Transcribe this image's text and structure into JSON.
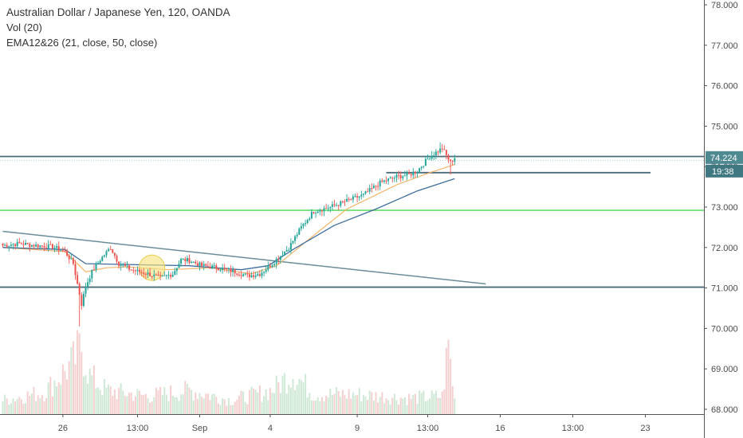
{
  "legend": {
    "title": "Australian Dollar / Japanese Yen, 120, OANDA",
    "volume": "Vol (20)",
    "ema": "EMA12&26 (21, close, 50, close)"
  },
  "price_badges": {
    "last_price": "74.224",
    "countdown": "19:38"
  },
  "colors": {
    "up": "#26a69a",
    "down": "#ef5350",
    "vol_up": "#cfe8d6",
    "vol_down": "#f5d0d0",
    "ema_fast": "#f5b56b",
    "ema_slow": "#3f6e9e",
    "h_line": "#4a6c7a",
    "green_line": "#66dd66",
    "trend_line": "#6b8c9a",
    "highlight": "#f5e27a",
    "price_badge": "#4f8a93",
    "countdown_badge": "#3f7880"
  },
  "chart_data": {
    "type": "candlestick",
    "title": "Australian Dollar / Japanese Yen, 120, OANDA",
    "y_axis_ticks": [
      "78.000",
      "77.000",
      "76.000",
      "75.000",
      "74.000",
      "73.000",
      "72.000",
      "71.000",
      "70.000",
      "69.000",
      "68.000"
    ],
    "x_axis_ticks": [
      "26",
      "13:00",
      "Sep",
      "4",
      "9",
      "13:00",
      "16",
      "13:00",
      "23"
    ],
    "ylim": [
      67.85,
      78.1
    ],
    "price_path": [
      [
        0,
        72.05
      ],
      [
        8,
        72.1
      ],
      [
        16,
        72.05
      ],
      [
        24,
        72.02
      ],
      [
        30,
        71.9
      ],
      [
        34,
        71.6
      ],
      [
        36,
        71.1
      ],
      [
        38,
        70.6
      ],
      [
        40,
        71.05
      ],
      [
        43,
        71.4
      ],
      [
        47,
        71.7
      ],
      [
        52,
        72.0
      ],
      [
        56,
        71.6
      ],
      [
        62,
        71.45
      ],
      [
        70,
        71.35
      ],
      [
        76,
        71.25
      ],
      [
        82,
        71.35
      ],
      [
        86,
        71.7
      ],
      [
        90,
        71.68
      ],
      [
        96,
        71.55
      ],
      [
        104,
        71.5
      ],
      [
        112,
        71.4
      ],
      [
        118,
        71.3
      ],
      [
        124,
        71.35
      ],
      [
        130,
        71.6
      ],
      [
        138,
        72.0
      ],
      [
        144,
        72.5
      ],
      [
        150,
        72.9
      ],
      [
        158,
        73.0
      ],
      [
        166,
        73.15
      ],
      [
        174,
        73.3
      ],
      [
        182,
        73.6
      ],
      [
        190,
        73.75
      ],
      [
        196,
        73.8
      ],
      [
        200,
        73.9
      ],
      [
        206,
        74.25
      ],
      [
        212,
        74.45
      ],
      [
        216,
        74.1
      ],
      [
        218,
        74.224
      ]
    ],
    "volume_path": [
      [
        0,
        0.7
      ],
      [
        20,
        1.1
      ],
      [
        34,
        2.6
      ],
      [
        38,
        3.4
      ],
      [
        42,
        1.9
      ],
      [
        50,
        1.2
      ],
      [
        70,
        0.9
      ],
      [
        90,
        1.2
      ],
      [
        110,
        0.7
      ],
      [
        130,
        1.2
      ],
      [
        140,
        2.1
      ],
      [
        150,
        1.0
      ],
      [
        170,
        1.0
      ],
      [
        195,
        0.8
      ],
      [
        212,
        0.9
      ],
      [
        215,
        3.5
      ],
      [
        218,
        0.7
      ]
    ],
    "ema_fast_path": [
      [
        0,
        72.0
      ],
      [
        30,
        71.9
      ],
      [
        40,
        71.4
      ],
      [
        50,
        71.5
      ],
      [
        60,
        71.52
      ],
      [
        80,
        71.45
      ],
      [
        100,
        71.5
      ],
      [
        120,
        71.35
      ],
      [
        132,
        71.55
      ],
      [
        150,
        72.3
      ],
      [
        166,
        72.95
      ],
      [
        190,
        73.55
      ],
      [
        206,
        73.85
      ],
      [
        218,
        74.05
      ]
    ],
    "ema_slow_path": [
      [
        0,
        72.0
      ],
      [
        30,
        71.95
      ],
      [
        40,
        71.6
      ],
      [
        60,
        71.58
      ],
      [
        90,
        71.55
      ],
      [
        115,
        71.45
      ],
      [
        128,
        71.55
      ],
      [
        140,
        71.95
      ],
      [
        160,
        72.55
      ],
      [
        180,
        72.95
      ],
      [
        200,
        73.4
      ],
      [
        218,
        73.7
      ]
    ],
    "horizontal_lines": [
      74.25,
      73.85,
      72.92,
      71.02
    ],
    "trend_line": {
      "from": [
        0,
        72.4
      ],
      "to": [
        233,
        71.1
      ]
    },
    "highlight_marker": {
      "bar": 72,
      "price": 71.5
    },
    "bar_count": 219,
    "x_tick_bars": [
      29,
      65,
      95,
      129,
      171,
      205,
      240,
      275,
      310
    ]
  }
}
